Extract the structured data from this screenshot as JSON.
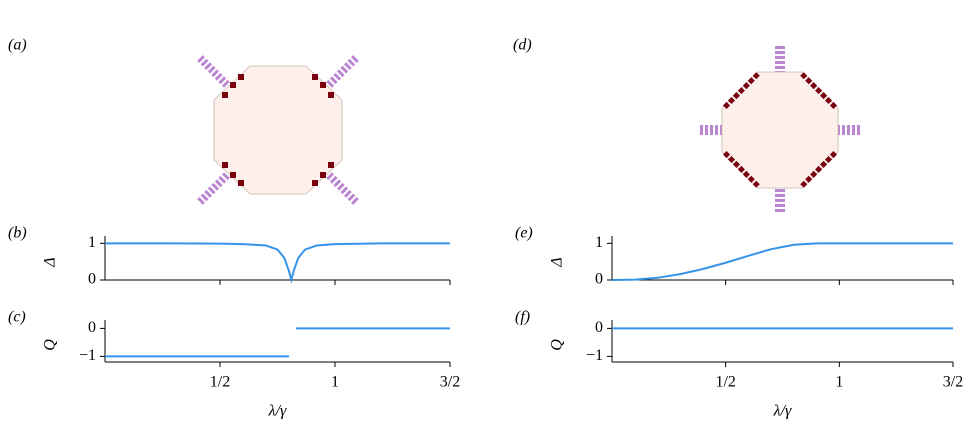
{
  "image_panels": [
    {
      "label": "(a)"
    },
    {
      "label": "(d)"
    }
  ],
  "chart_data": [
    {
      "type": "line",
      "panel_label": "(b)",
      "ylabel": "Δ",
      "x": [
        0,
        0.1,
        0.2,
        0.3,
        0.4,
        0.5,
        0.6,
        0.7,
        0.75,
        0.78,
        0.8,
        0.81,
        0.82,
        0.84,
        0.87,
        0.92,
        1.0,
        1.1,
        1.2,
        1.3,
        1.4,
        1.5
      ],
      "values": [
        1,
        1,
        1,
        1,
        0.996,
        0.992,
        0.98,
        0.94,
        0.83,
        0.6,
        0.24,
        0,
        0.24,
        0.6,
        0.83,
        0.94,
        0.98,
        0.99,
        1,
        1,
        1,
        1
      ],
      "color": "#3594e8",
      "xlim": [
        0,
        1.5
      ],
      "xticks": [
        0.5,
        1,
        1.5
      ],
      "ylim": [
        0,
        1.2
      ],
      "yticks": [
        0,
        1
      ]
    },
    {
      "type": "line",
      "panel_label": "(c)",
      "ylabel": "Q",
      "xlabel": "λ/γ",
      "x": [
        0,
        0.8,
        0.815,
        0.83,
        1.5
      ],
      "values": [
        -1,
        -1,
        null,
        0,
        0
      ],
      "color": "#3594e8",
      "xlim": [
        0,
        1.5
      ],
      "xticks": [
        {
          "value": 0.5,
          "label": "1/2"
        },
        1,
        {
          "value": 1.5,
          "label": "3/2"
        }
      ],
      "ylim": [
        -1.2,
        0.3
      ],
      "yticks": [
        {
          "value": -1,
          "label": "−1"
        },
        0
      ]
    },
    {
      "type": "line",
      "panel_label": "(e)",
      "ylabel": "Δ",
      "x": [
        0,
        0.1,
        0.2,
        0.3,
        0.4,
        0.5,
        0.6,
        0.7,
        0.8,
        0.9,
        1.0,
        1.1,
        1.2,
        1.3,
        1.4,
        1.5
      ],
      "values": [
        0,
        0.01,
        0.06,
        0.16,
        0.3,
        0.47,
        0.66,
        0.84,
        0.96,
        1,
        1,
        1,
        1,
        1,
        1,
        1
      ],
      "color": "#3594e8",
      "xlim": [
        0,
        1.5
      ],
      "xticks": [
        0.5,
        1,
        1.5
      ],
      "ylim": [
        0,
        1.2
      ],
      "yticks": [
        0,
        1
      ]
    },
    {
      "type": "line",
      "panel_label": "(f)",
      "ylabel": "Q",
      "xlabel": "λ/γ",
      "x": [
        0,
        1.5
      ],
      "values": [
        0,
        0
      ],
      "color": "#3594e8",
      "xlim": [
        0,
        1.5
      ],
      "xticks": [
        {
          "value": 0.5,
          "label": "1/2"
        },
        1,
        {
          "value": 1.5,
          "label": "3/2"
        }
      ],
      "ylim": [
        -1.2,
        0.3
      ],
      "yticks": [
        {
          "value": -1,
          "label": "−1"
        },
        0
      ]
    }
  ]
}
